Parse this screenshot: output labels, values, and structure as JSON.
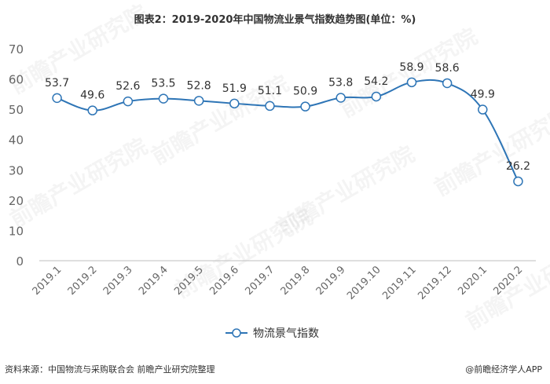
{
  "title": "图表2：2019-2020年中国物流业景气指数趋势图(单位：%)",
  "source": "资料来源：中国物流与采购联合会 前瞻产业研究院整理",
  "credit": "@前瞻经济学人APP",
  "watermark": "前瞻产业研究院",
  "colors": {
    "line": "#2e75b6",
    "marker_fill": "#ffffff",
    "axis_text": "#666666",
    "label_text": "#333333"
  },
  "chart_data": {
    "type": "line",
    "categories": [
      "2019.1",
      "2019.2",
      "2019.3",
      "2019.4",
      "2019.5",
      "2019.6",
      "2019.7",
      "2019.8",
      "2019.9",
      "2019.10",
      "2019.11",
      "2019.12",
      "2020.1",
      "2020.2"
    ],
    "series": [
      {
        "name": "物流景气指数",
        "values": [
          53.7,
          49.6,
          52.6,
          53.5,
          52.8,
          51.9,
          51.1,
          50.9,
          53.8,
          54.2,
          58.9,
          58.6,
          49.9,
          26.2
        ]
      }
    ],
    "yticks": [
      0,
      10,
      20,
      30,
      40,
      50,
      60,
      70
    ],
    "ylim": [
      0,
      70
    ],
    "grid": false,
    "legend_position": "bottom",
    "smooth": true,
    "data_labels": true
  }
}
